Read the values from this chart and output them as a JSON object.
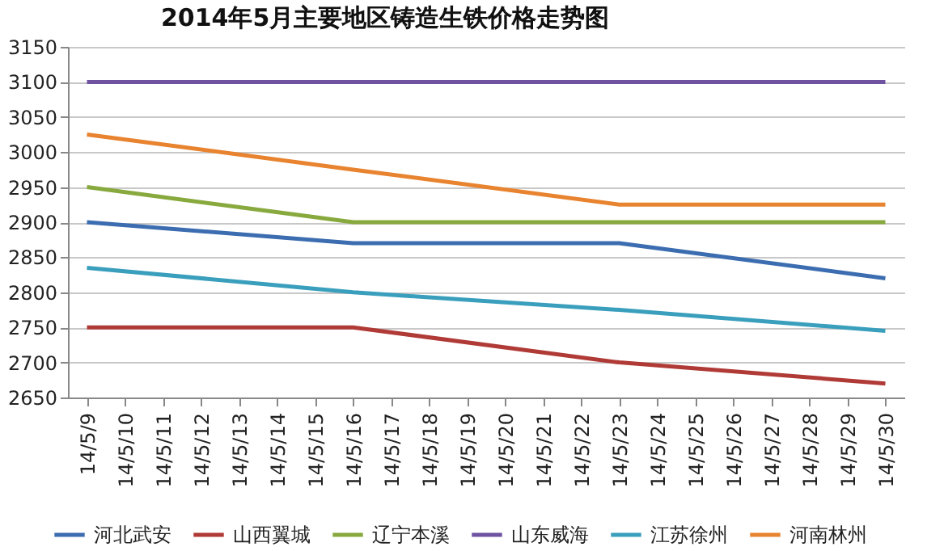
{
  "chart_data": {
    "type": "line",
    "title": "2014年5月主要地区铸造生铁价格走势图",
    "categories": [
      "14/5/9",
      "14/5/10",
      "14/5/11",
      "14/5/12",
      "14/5/13",
      "14/5/14",
      "14/5/15",
      "14/5/16",
      "14/5/17",
      "14/5/18",
      "14/5/19",
      "14/5/20",
      "14/5/21",
      "14/5/22",
      "14/5/23",
      "14/5/24",
      "14/5/25",
      "14/5/26",
      "14/5/27",
      "14/5/28",
      "14/5/29",
      "14/5/30"
    ],
    "series": [
      {
        "name": "河北武安",
        "color": "#3c6db0",
        "values": [
          2900,
          null,
          null,
          null,
          null,
          null,
          null,
          2870,
          null,
          null,
          null,
          null,
          null,
          null,
          2870,
          null,
          null,
          null,
          null,
          null,
          null,
          2820
        ]
      },
      {
        "name": "山西翼城",
        "color": "#b03a36",
        "values": [
          2750,
          null,
          null,
          null,
          null,
          null,
          null,
          2750,
          null,
          null,
          null,
          null,
          null,
          null,
          2700,
          null,
          null,
          null,
          null,
          null,
          null,
          2670
        ]
      },
      {
        "name": "辽宁本溪",
        "color": "#88a93e",
        "values": [
          2950,
          null,
          null,
          null,
          null,
          null,
          null,
          2900,
          null,
          null,
          null,
          null,
          null,
          null,
          2900,
          null,
          null,
          null,
          null,
          null,
          null,
          2900
        ]
      },
      {
        "name": "山东威海",
        "color": "#7053a0",
        "values": [
          3100,
          null,
          null,
          null,
          null,
          null,
          null,
          3100,
          null,
          null,
          null,
          null,
          null,
          null,
          3100,
          null,
          null,
          null,
          null,
          null,
          null,
          3100
        ]
      },
      {
        "name": "江苏徐州",
        "color": "#3a9fbc",
        "values": [
          2835,
          null,
          null,
          null,
          null,
          null,
          null,
          2800,
          null,
          null,
          null,
          null,
          null,
          null,
          2775,
          null,
          null,
          null,
          null,
          null,
          null,
          2745
        ]
      },
      {
        "name": "河南林州",
        "color": "#e8832f",
        "values": [
          3025,
          null,
          null,
          null,
          null,
          null,
          null,
          2975,
          null,
          null,
          null,
          null,
          null,
          null,
          2925,
          null,
          null,
          null,
          null,
          null,
          null,
          2925
        ]
      }
    ],
    "ylim": [
      2650,
      3150
    ],
    "yticks": [
      2650,
      2700,
      2750,
      2800,
      2850,
      2900,
      2950,
      3000,
      3050,
      3100,
      3150
    ],
    "grid": "y",
    "legend": "bottom",
    "marker": "none",
    "line_style": "solid"
  }
}
